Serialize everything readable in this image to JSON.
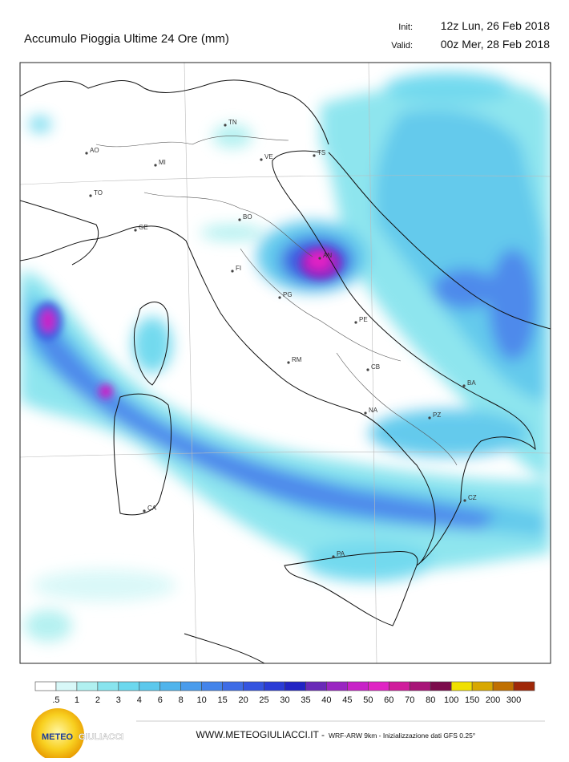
{
  "header": {
    "title": "Accumulo Pioggia Ultime 24 Ore   (mm)",
    "init_label": "Init:",
    "init": "12z Lun, 26 Feb 2018",
    "valid_label": "Valid:",
    "valid": "00z Mer, 28 Feb 2018"
  },
  "cities": [
    "AO",
    "MI",
    "TO",
    "GE",
    "TN",
    "VE",
    "TS",
    "BO",
    "FI",
    "AN",
    "PG",
    "PE",
    "RM",
    "CB",
    "BA",
    "NA",
    "PZ",
    "CZ",
    "CA",
    "PA"
  ],
  "legend": {
    "labels": [
      ".5",
      "1",
      "2",
      "3",
      "4",
      "6",
      "8",
      "10",
      "15",
      "20",
      "25",
      "30",
      "35",
      "40",
      "45",
      "50",
      "60",
      "70",
      "80",
      "100",
      "150",
      "200",
      "300"
    ],
    "colors": [
      "#ffffff",
      "#d8f8f8",
      "#b0f0f0",
      "#88e4ee",
      "#6cd8ee",
      "#5cc8ec",
      "#50b4ec",
      "#4a9cec",
      "#4484ea",
      "#3e6ce6",
      "#3454e0",
      "#2a3cd6",
      "#2224c4",
      "#6a2ab8",
      "#9a26c2",
      "#c822c8",
      "#e024c4",
      "#d01c9c",
      "#a81478",
      "#7c0c4c",
      "#f0e000",
      "#d8a800",
      "#c07000",
      "#a02808"
    ]
  },
  "logo": {
    "meteo": "METEO",
    "giuliacci": "GIULIACCI"
  },
  "footer": {
    "site": "WWW.METEOGIULIACCI.IT -",
    "note": "WRF-ARW 9km - Inizializzazione dati GFS 0.25°"
  }
}
